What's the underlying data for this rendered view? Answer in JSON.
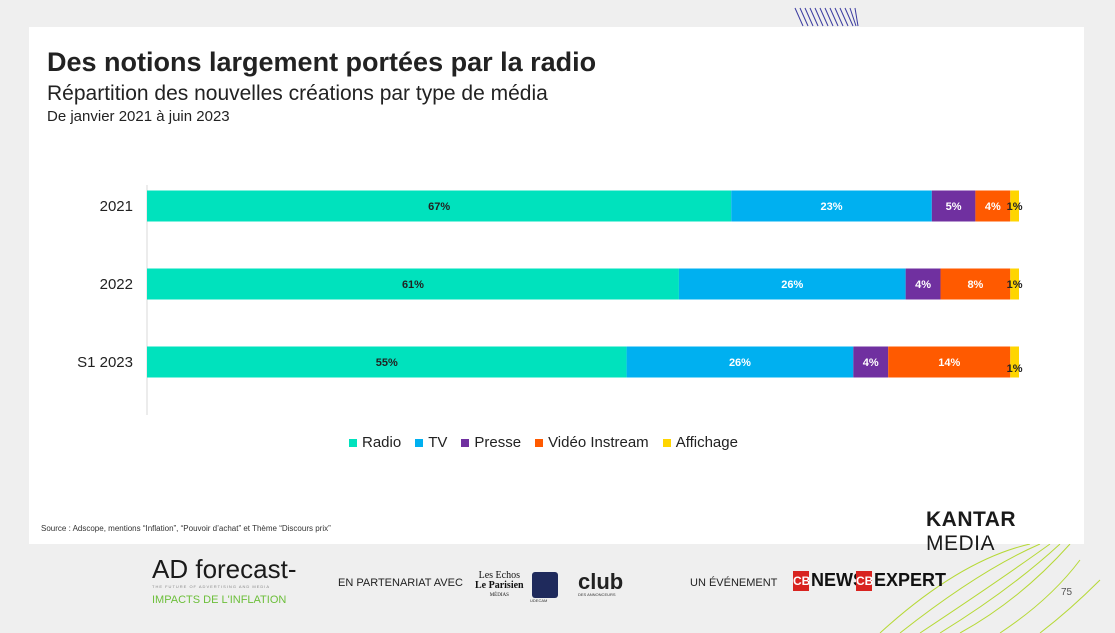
{
  "slide": {
    "title": "Des notions largement portées par la radio",
    "subtitle": "Répartition des nouvelles créations par type de média",
    "period": "De janvier 2021 à juin 2023",
    "source": "Source : Adscope, mentions “Inflation”, “Pouvoir d’achat” et Thème “Discours prix”",
    "brand_bold": "KANTAR",
    "brand_light": " MEDIA"
  },
  "chart_data": {
    "type": "bar",
    "orientation": "horizontal",
    "stacked": true,
    "categories": [
      "2021",
      "2022",
      "S1 2023"
    ],
    "series": [
      {
        "name": "Radio",
        "color": "#00e2bd",
        "values": [
          67,
          61,
          55
        ],
        "labels": [
          "67%",
          "61%",
          "55%"
        ],
        "label_color": "#222222"
      },
      {
        "name": "TV",
        "color": "#00b0f0",
        "values": [
          23,
          26,
          26
        ],
        "labels": [
          "23%",
          "26%",
          "26%"
        ],
        "label_color": "#ffffff"
      },
      {
        "name": "Presse",
        "color": "#7030a0",
        "values": [
          5,
          4,
          4
        ],
        "labels": [
          "5%",
          "4%",
          "4%"
        ],
        "label_color": "#ffffff"
      },
      {
        "name": "Vidéo Instream",
        "color": "#ff5a00",
        "values": [
          4,
          8,
          14
        ],
        "labels": [
          "4%",
          "8%",
          "14%"
        ],
        "label_color": "#ffffff"
      },
      {
        "name": "Affichage",
        "color": "#ffd500",
        "values": [
          1,
          1,
          1
        ],
        "labels": [
          "1%",
          "1%",
          "1%"
        ],
        "label_color": "#222222"
      }
    ],
    "legend_position": "bottom",
    "grid": false
  },
  "footer": {
    "ad_logo": "AD forecast-",
    "ad_tagline": "THE FUTURE OF ADVERTISING AND MEDIA",
    "ad_subtitle": "IMPACTS DE L'INFLATION",
    "partnership": "EN PARTENARIAT AVEC",
    "lesechos_line1": "Les Echos",
    "lesechos_line2": "Le Parisien",
    "lesechos_line3": "MÉDIAS",
    "udecam": "UDECAM",
    "club": "club",
    "club_sub": "DES ANNONCEURS",
    "event": "UN ÉVÉNEMENT",
    "cbnews": "NEWS",
    "cbexpert": "EXPERT",
    "cb_badge": "CB",
    "page_number": "75"
  }
}
